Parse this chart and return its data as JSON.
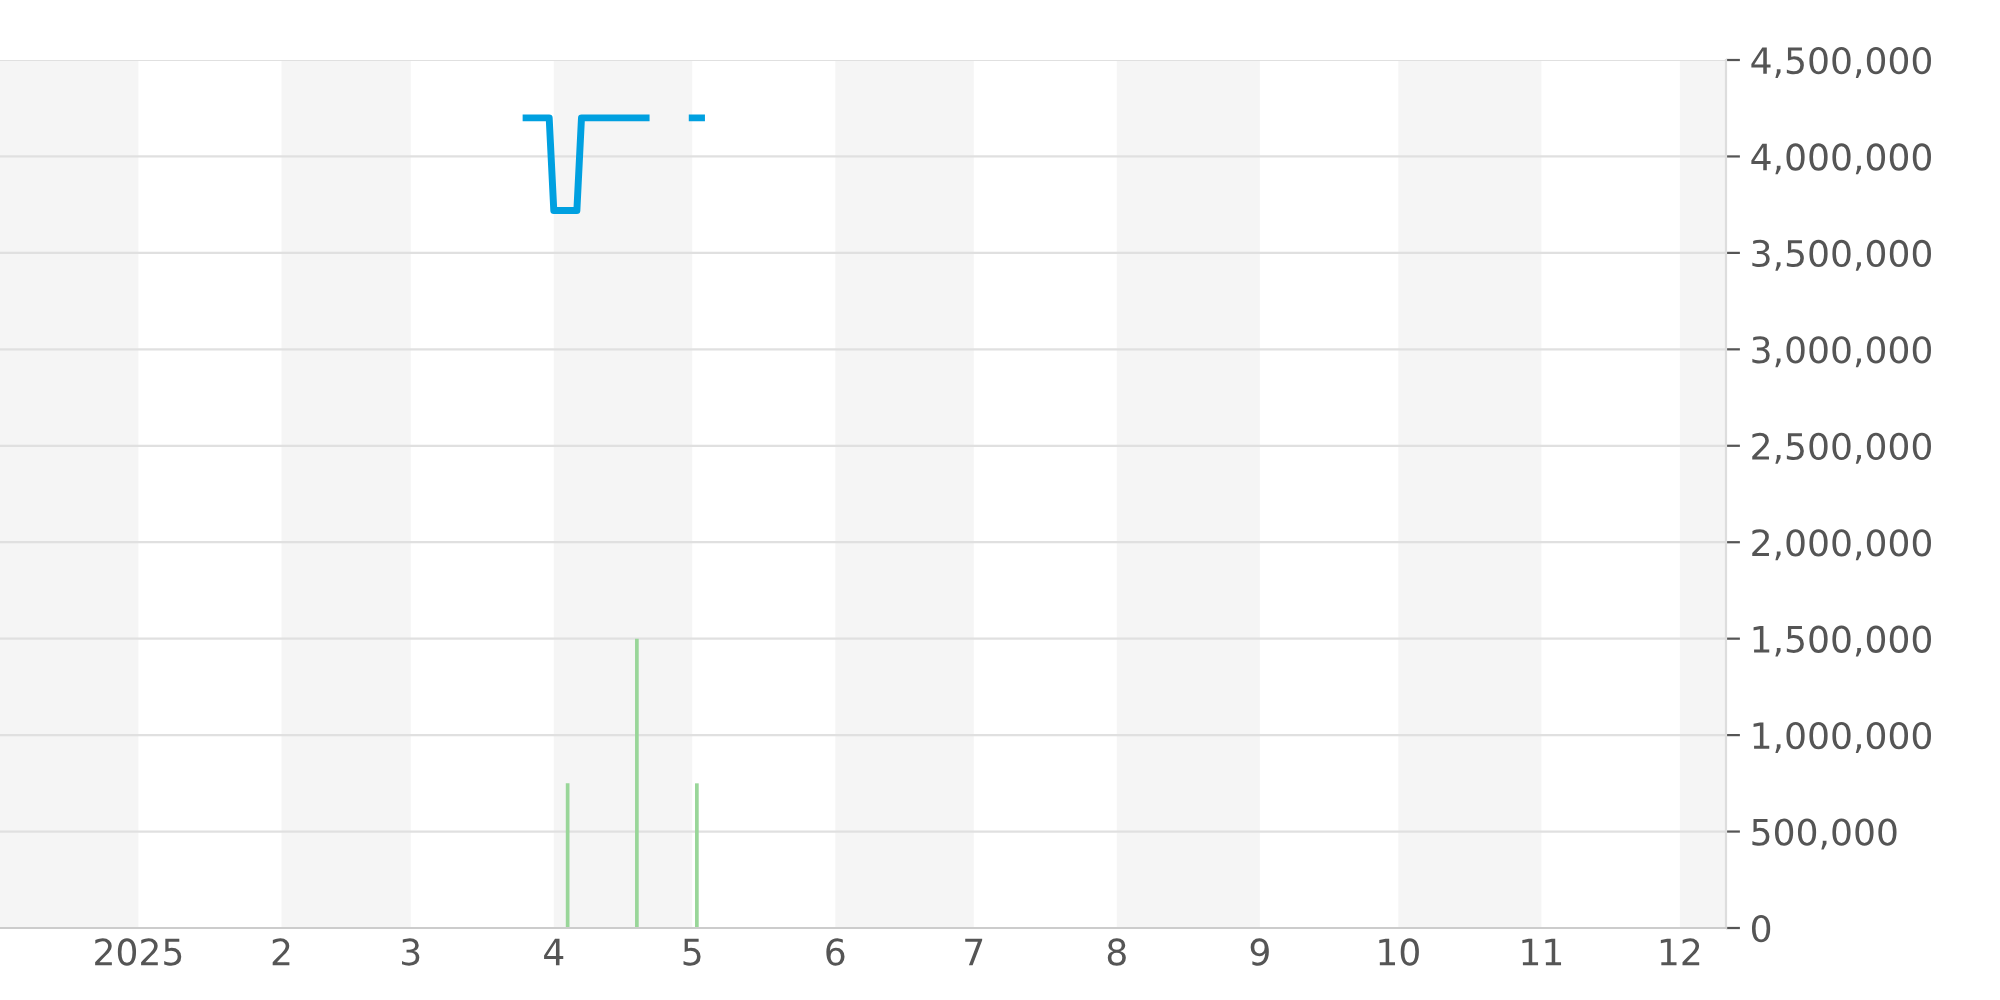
{
  "chart_data": {
    "type": "line",
    "series": [
      {
        "color": "#00a0e0",
        "x": [
          "2025-03-26",
          "2025-03-31",
          "2025-04-01",
          "2025-04-06",
          "2025-04-07",
          "2025-04-21",
          "2025-04-26",
          "2025-05-01",
          "2025-05-03"
        ],
        "values": [
          4200000,
          4200000,
          3720000,
          3720000,
          4200000,
          4200000,
          null,
          4200000,
          4200000
        ]
      },
      {
        "type": "bar",
        "color": "#99d699",
        "x": [
          "2025-04-04",
          "2025-04-19",
          "2025-05-02"
        ],
        "values": [
          750000,
          1500000,
          750000
        ]
      }
    ],
    "xlim": [
      "2024-12-02",
      "2025-12-11"
    ],
    "xticks": [
      {
        "value": "2025-01-01",
        "label": "2025"
      },
      {
        "value": "2025-02-01",
        "label": "2"
      },
      {
        "value": "2025-03-01",
        "label": "3"
      },
      {
        "value": "2025-04-01",
        "label": "4"
      },
      {
        "value": "2025-05-01",
        "label": "5"
      },
      {
        "value": "2025-06-01",
        "label": "6"
      },
      {
        "value": "2025-07-01",
        "label": "7"
      },
      {
        "value": "2025-08-01",
        "label": "8"
      },
      {
        "value": "2025-09-01",
        "label": "9"
      },
      {
        "value": "2025-10-01",
        "label": "10"
      },
      {
        "value": "2025-11-01",
        "label": "11"
      },
      {
        "value": "2025-12-01",
        "label": "12"
      }
    ],
    "ylim": [
      0,
      4500000
    ],
    "yticks": [
      {
        "value": 0,
        "label": "0"
      },
      {
        "value": 500000,
        "label": "500,000"
      },
      {
        "value": 1000000,
        "label": "1,000,000"
      },
      {
        "value": 1500000,
        "label": "1,500,000"
      },
      {
        "value": 2000000,
        "label": "2,000,000"
      },
      {
        "value": 2500000,
        "label": "2,500,000"
      },
      {
        "value": 3000000,
        "label": "3,000,000"
      },
      {
        "value": 3500000,
        "label": "3,500,000"
      },
      {
        "value": 4000000,
        "label": "4,000,000"
      },
      {
        "value": 4500000,
        "label": "4,500,000"
      }
    ],
    "bands": [
      {
        "axis": "x",
        "from": "2024-12-02",
        "to": "2025-01-01",
        "color": "#f5f5f5"
      },
      {
        "axis": "x",
        "from": "2025-02-01",
        "to": "2025-03-01",
        "color": "#f5f5f5"
      },
      {
        "axis": "x",
        "from": "2025-04-01",
        "to": "2025-05-01",
        "color": "#f5f5f5"
      },
      {
        "axis": "x",
        "from": "2025-06-01",
        "to": "2025-07-01",
        "color": "#f5f5f5"
      },
      {
        "axis": "x",
        "from": "2025-08-01",
        "to": "2025-09-01",
        "color": "#f5f5f5"
      },
      {
        "axis": "x",
        "from": "2025-10-01",
        "to": "2025-11-01",
        "color": "#f5f5f5"
      },
      {
        "axis": "x",
        "from": "2025-12-01",
        "to": "2025-12-11",
        "color": "#f5f5f5"
      }
    ],
    "grid": "y",
    "line_style": "solid"
  }
}
